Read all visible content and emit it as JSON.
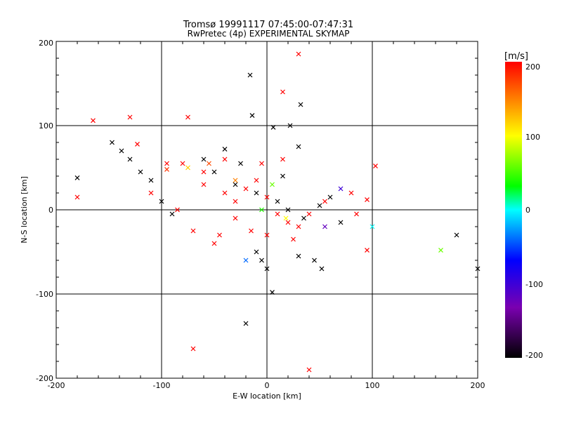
{
  "chart_data": {
    "type": "scatter",
    "title": "Tromsø 19991117 07:45:00-07:47:31",
    "subtitle": "RwPretec (4p) EXPERIMENTAL SKYMAP",
    "xlabel": "E-W location [km]",
    "ylabel": "N-S location [km]",
    "xlim": [
      -200,
      200
    ],
    "ylim": [
      -200,
      200
    ],
    "x_ticks": [
      "-200",
      "-100",
      "0",
      "100",
      "200"
    ],
    "y_ticks": [
      "-200",
      "-100",
      "0",
      "100",
      "200"
    ],
    "grid": true,
    "colorbar": {
      "label": "[m/s]",
      "range": [
        -200,
        200
      ],
      "ticks": [
        "200",
        "100",
        "0",
        "-100",
        "-200"
      ],
      "colors": [
        "#000000",
        "#7a00b0",
        "#0000ff",
        "#00ffff",
        "#00ff00",
        "#ffff00",
        "#ff0000"
      ]
    },
    "series": [
      {
        "points": [
          [
            -16,
            160,
            -200
          ],
          [
            -14,
            112,
            -200
          ],
          [
            32,
            125,
            -200
          ],
          [
            6,
            98,
            -200
          ],
          [
            22,
            100,
            -200
          ],
          [
            -147,
            80,
            -200
          ],
          [
            -138,
            70,
            -200
          ],
          [
            -180,
            38,
            -200
          ],
          [
            -110,
            35,
            -200
          ],
          [
            30,
            75,
            -200
          ],
          [
            -40,
            72,
            -200
          ],
          [
            180,
            -30,
            -200
          ],
          [
            200,
            -70,
            -200
          ],
          [
            -20,
            -135,
            -200
          ],
          [
            0,
            -70,
            -200
          ],
          [
            52,
            -70,
            -200
          ],
          [
            5,
            -98,
            -200
          ],
          [
            -10,
            -50,
            -200
          ],
          [
            -5,
            -60,
            -200
          ],
          [
            30,
            -55,
            -200
          ],
          [
            45,
            -60,
            -200
          ],
          [
            -60,
            60,
            -200
          ],
          [
            -50,
            45,
            -200
          ],
          [
            -30,
            30,
            -200
          ],
          [
            -10,
            20,
            -200
          ],
          [
            10,
            10,
            -200
          ],
          [
            20,
            0,
            -200
          ],
          [
            35,
            -10,
            -200
          ],
          [
            50,
            5,
            -200
          ],
          [
            -100,
            10,
            -200
          ],
          [
            -90,
            -5,
            -200
          ],
          [
            -120,
            45,
            -200
          ],
          [
            -130,
            60,
            -200
          ],
          [
            -25,
            55,
            -200
          ],
          [
            15,
            40,
            -200
          ],
          [
            60,
            15,
            -200
          ],
          [
            70,
            -15,
            -200
          ],
          [
            -165,
            106,
            200
          ],
          [
            -130,
            110,
            200
          ],
          [
            -75,
            110,
            200
          ],
          [
            15,
            140,
            200
          ],
          [
            30,
            185,
            200
          ],
          [
            -123,
            78,
            200
          ],
          [
            -180,
            15,
            200
          ],
          [
            -70,
            -165,
            200
          ],
          [
            40,
            -190,
            200
          ],
          [
            103,
            52,
            200
          ],
          [
            95,
            -48,
            200
          ],
          [
            95,
            12,
            200
          ],
          [
            -95,
            55,
            200
          ],
          [
            -80,
            55,
            200
          ],
          [
            -60,
            30,
            200
          ],
          [
            -40,
            20,
            200
          ],
          [
            -30,
            10,
            200
          ],
          [
            -20,
            25,
            200
          ],
          [
            -10,
            35,
            200
          ],
          [
            0,
            15,
            200
          ],
          [
            10,
            -5,
            200
          ],
          [
            20,
            -15,
            200
          ],
          [
            30,
            -20,
            200
          ],
          [
            40,
            -5,
            200
          ],
          [
            55,
            10,
            200
          ],
          [
            -50,
            -40,
            200
          ],
          [
            -45,
            -30,
            200
          ],
          [
            -70,
            -25,
            200
          ],
          [
            -30,
            -10,
            200
          ],
          [
            -15,
            -25,
            200
          ],
          [
            0,
            -30,
            200
          ],
          [
            25,
            -35,
            200
          ],
          [
            80,
            20,
            200
          ],
          [
            85,
            -5,
            200
          ],
          [
            -110,
            20,
            200
          ],
          [
            -85,
            0,
            200
          ],
          [
            -5,
            55,
            200
          ],
          [
            15,
            60,
            200
          ],
          [
            -40,
            60,
            200
          ],
          [
            -60,
            45,
            200
          ],
          [
            165,
            -48,
            60
          ],
          [
            100,
            -20,
            0
          ],
          [
            70,
            25,
            -100
          ],
          [
            5,
            30,
            60
          ],
          [
            -75,
            50,
            120
          ],
          [
            -30,
            35,
            150
          ],
          [
            18,
            -10,
            100
          ],
          [
            -20,
            -60,
            -40
          ],
          [
            -95,
            48,
            180
          ],
          [
            -55,
            55,
            170
          ],
          [
            55,
            -20,
            -120
          ],
          [
            -5,
            0,
            40
          ]
        ]
      }
    ]
  }
}
